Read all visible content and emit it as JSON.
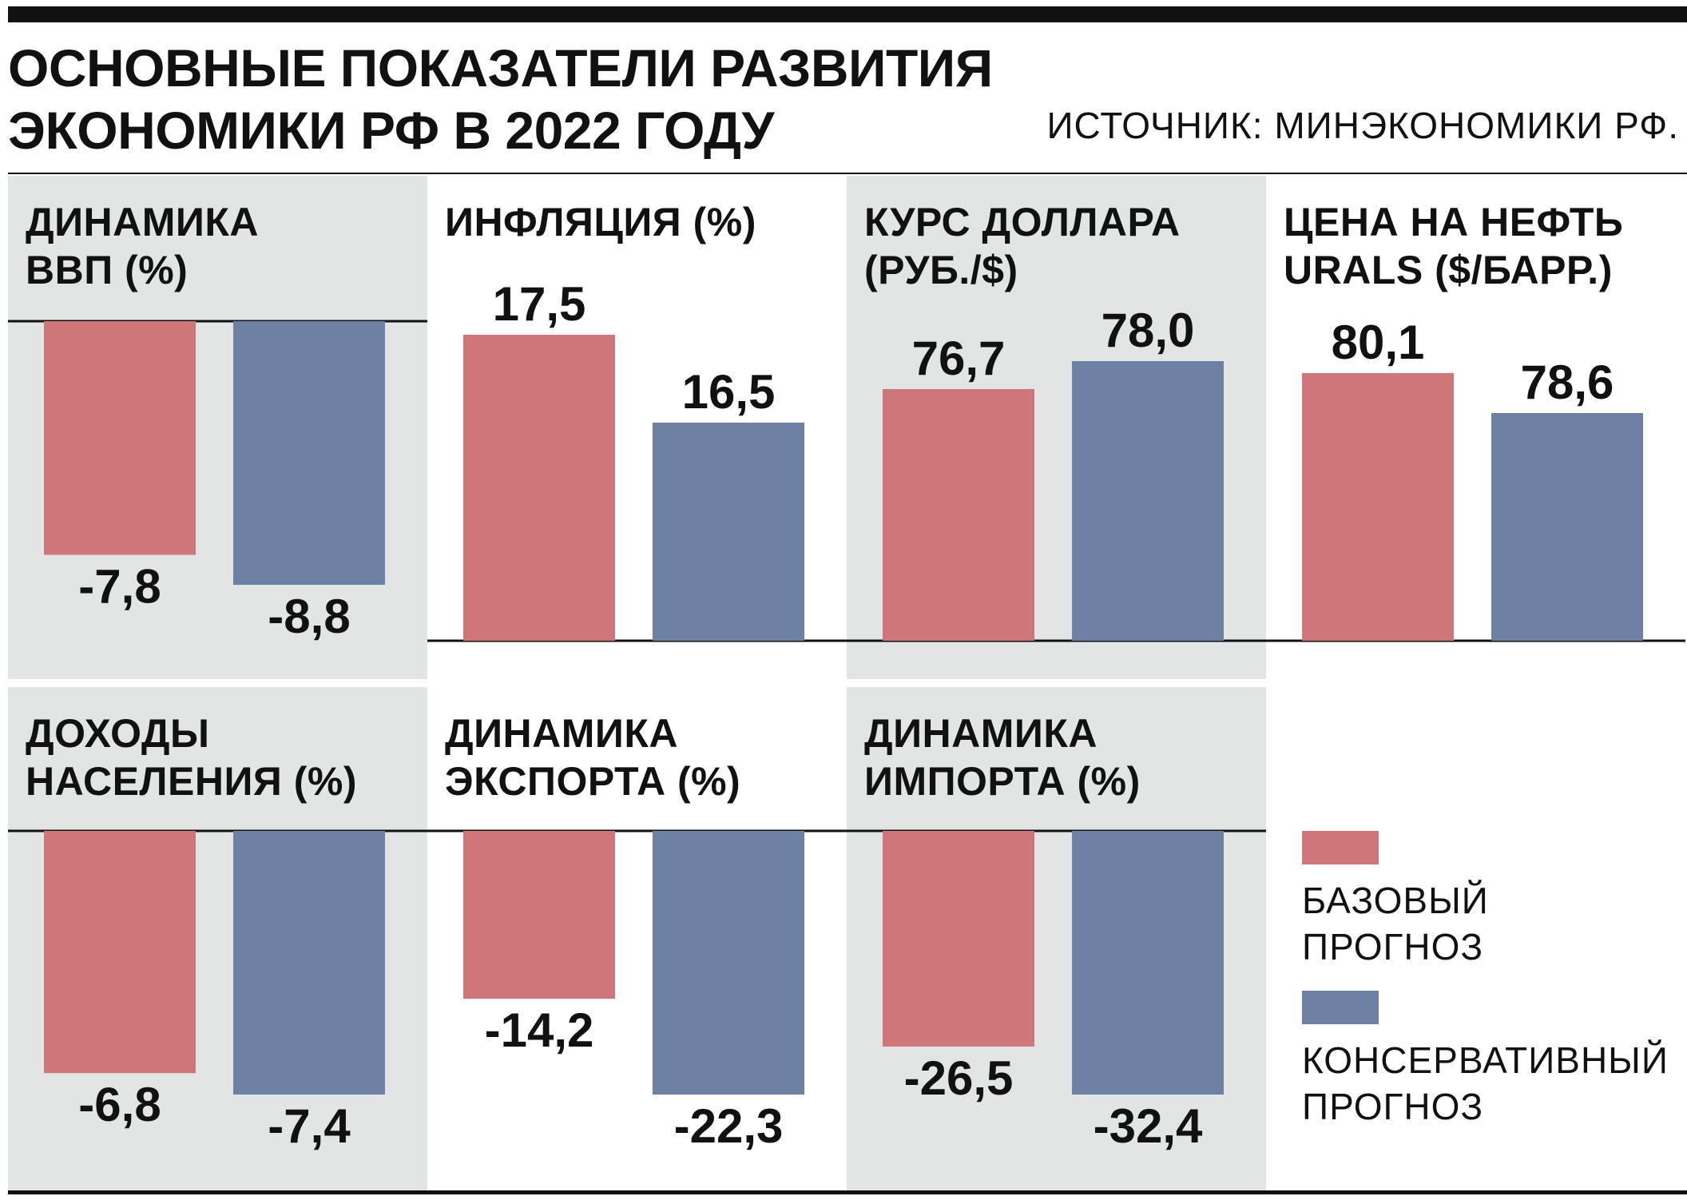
{
  "title": "ОСНОВНЫЕ ПОКАЗАТЕЛИ РАЗВИТИЯ\nЭКОНОМИКИ РФ В 2022 ГОДУ",
  "source": "ИСТОЧНИК: МИНЭКОНОМИКИ РФ.",
  "colors": {
    "base": "#cf767a",
    "conservative": "#6f80a5",
    "panel_shade": "#e1e6e5"
  },
  "legend": [
    {
      "label": "БАЗОВЫЙ\nПРОГНОЗ",
      "color": "#cf767a"
    },
    {
      "label": "КОНСЕРВАТИВНЫЙ\nПРОГНОЗ",
      "color": "#6f80a5"
    }
  ],
  "chart_data": [
    {
      "type": "bar",
      "title": "ДИНАМИКА\nВВП (%)",
      "series": [
        {
          "name": "БАЗОВЫЙ ПРОГНОЗ",
          "value": -7.8,
          "label": "-7,8"
        },
        {
          "name": "КОНСЕРВАТИВНЫЙ ПРОГНОЗ",
          "value": -8.8,
          "label": "-8,8"
        }
      ]
    },
    {
      "type": "bar",
      "title": "ИНФЛЯЦИЯ (%)",
      "series": [
        {
          "name": "БАЗОВЫЙ ПРОГНОЗ",
          "value": 17.5,
          "label": "17,5"
        },
        {
          "name": "КОНСЕРВАТИВНЫЙ ПРОГНОЗ",
          "value": 16.5,
          "label": "16,5"
        }
      ]
    },
    {
      "type": "bar",
      "title": "КУРС ДОЛЛАРА\n(РУБ./$)",
      "series": [
        {
          "name": "БАЗОВЫЙ ПРОГНОЗ",
          "value": 76.7,
          "label": "76,7"
        },
        {
          "name": "КОНСЕРВАТИВНЫЙ ПРОГНОЗ",
          "value": 78.0,
          "label": "78,0"
        }
      ]
    },
    {
      "type": "bar",
      "title": "ЦЕНА НА НЕФТЬ\nURALS ($/БАРР.)",
      "series": [
        {
          "name": "БАЗОВЫЙ ПРОГНОЗ",
          "value": 80.1,
          "label": "80,1"
        },
        {
          "name": "КОНСЕРВАТИВНЫЙ ПРОГНОЗ",
          "value": 78.6,
          "label": "78,6"
        }
      ]
    },
    {
      "type": "bar",
      "title": "ДОХОДЫ\nНАСЕЛЕНИЯ (%)",
      "series": [
        {
          "name": "БАЗОВЫЙ ПРОГНОЗ",
          "value": -6.8,
          "label": "-6,8"
        },
        {
          "name": "КОНСЕРВАТИВНЫЙ ПРОГНОЗ",
          "value": -7.4,
          "label": "-7,4"
        }
      ]
    },
    {
      "type": "bar",
      "title": "ДИНАМИКА\nЭКСПОРТА (%)",
      "series": [
        {
          "name": "БАЗОВЫЙ ПРОГНОЗ",
          "value": -14.2,
          "label": "-14,2"
        },
        {
          "name": "КОНСЕРВАТИВНЫЙ ПРОГНОЗ",
          "value": -22.3,
          "label": "-22,3"
        }
      ]
    },
    {
      "type": "bar",
      "title": "ДИНАМИКА\nИМПОРТА (%)",
      "series": [
        {
          "name": "БАЗОВЫЙ ПРОГНОЗ",
          "value": -26.5,
          "label": "-26,5"
        },
        {
          "name": "КОНСЕРВАТИВНЫЙ ПРОГНОЗ",
          "value": -32.4,
          "label": "-32,4"
        }
      ]
    }
  ]
}
